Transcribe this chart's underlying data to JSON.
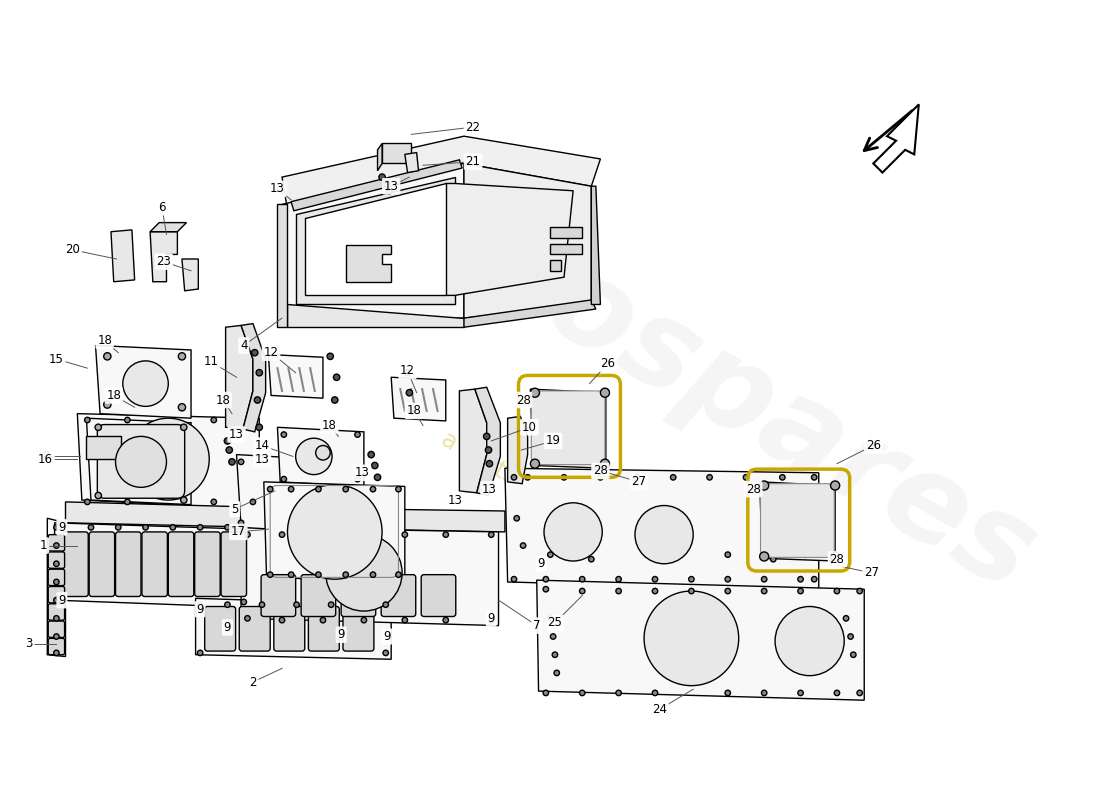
{
  "background_color": "#ffffff",
  "line_color": "#000000",
  "face_color": "#f8f8f8",
  "dark_face": "#eeeeee",
  "label_fontsize": 8.5,
  "watermark_color1": "#e0e0e0",
  "watermark_color2": "#d8cc60",
  "gasket_color": "#c8a800"
}
